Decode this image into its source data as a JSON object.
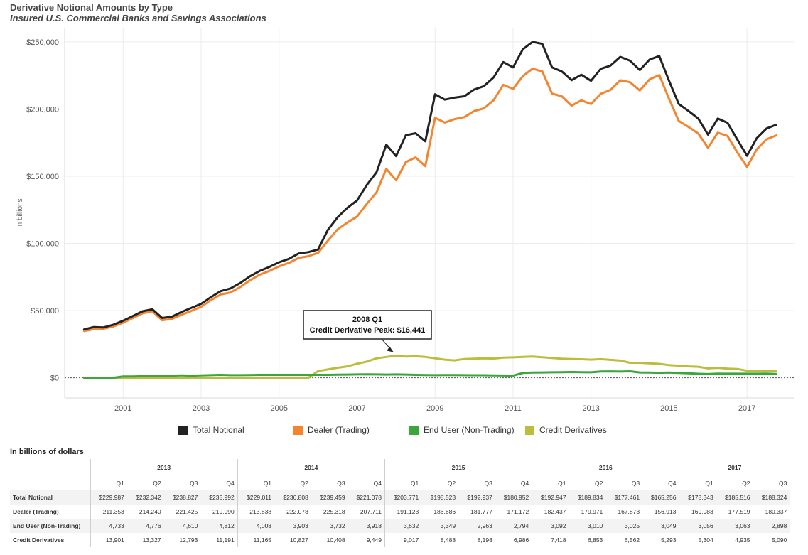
{
  "header": {
    "title": "Derivative Notional Amounts by Type",
    "subtitle": "Insured U.S. Commercial Banks and Savings Associations"
  },
  "chart_data": {
    "type": "line",
    "ylabel": "in billions",
    "xlabel": "",
    "ylim": [
      -15000,
      260000
    ],
    "xlim": [
      1999.5,
      2018.2
    ],
    "x_ticks": [
      2001,
      2003,
      2005,
      2007,
      2009,
      2011,
      2013,
      2015,
      2017
    ],
    "x_tick_labels": [
      "2001",
      "2003",
      "2005",
      "2007",
      "2009",
      "2011",
      "2013",
      "2015",
      "2017"
    ],
    "y_ticks": [
      0,
      50000,
      100000,
      150000,
      200000,
      250000
    ],
    "y_tick_labels": [
      "$0",
      "$50,000",
      "$100,000",
      "$150,000",
      "$200,000",
      "$250,000"
    ],
    "grid": true,
    "legend_position": "bottom",
    "x_start": 2000.0,
    "x_step": 0.25,
    "series": [
      {
        "name": "Total Notional",
        "color": "#222222",
        "values": [
          36000,
          37800,
          37500,
          39500,
          42500,
          46000,
          49500,
          51000,
          44500,
          45500,
          49000,
          52000,
          55000,
          60000,
          64500,
          66500,
          70500,
          75500,
          79500,
          82500,
          86000,
          88500,
          92500,
          93500,
          95500,
          110000,
          119500,
          126500,
          132000,
          143500,
          153000,
          173500,
          165000,
          180500,
          182000,
          176000,
          211000,
          207000,
          208500,
          209500,
          214500,
          217000,
          223500,
          235000,
          231000,
          244500,
          250000,
          248500,
          231000,
          228000,
          221500,
          225500,
          221000,
          229987,
          232342,
          238827,
          235992,
          229011,
          236808,
          239459,
          221078,
          203771,
          198523,
          192937,
          180952,
          192947,
          189834,
          177461,
          165256,
          178343,
          185516,
          188324
        ]
      },
      {
        "name": "Dealer (Trading)",
        "color": "#f5842f",
        "values": [
          34800,
          36200,
          36500,
          38200,
          41000,
          44500,
          48000,
          49500,
          42800,
          43800,
          47000,
          49800,
          52800,
          57800,
          62000,
          63500,
          67500,
          72500,
          76700,
          79500,
          83000,
          85500,
          89200,
          90500,
          93000,
          102000,
          110500,
          115500,
          120000,
          129500,
          138000,
          155500,
          147000,
          160500,
          164000,
          157500,
          193500,
          190000,
          192500,
          194000,
          198500,
          200500,
          206500,
          218000,
          215000,
          224500,
          230000,
          228000,
          211500,
          209500,
          202500,
          206500,
          203800,
          211353,
          214240,
          221425,
          219990,
          213838,
          222078,
          225318,
          207711,
          191123,
          186686,
          181777,
          171172,
          182437,
          179971,
          167873,
          156913,
          169983,
          177519,
          180337
        ]
      },
      {
        "name": "End User (Non-Trading)",
        "color": "#3aa63c",
        "values": [
          0,
          0,
          0,
          0,
          1000,
          1000,
          1200,
          1500,
          1500,
          1600,
          1800,
          1600,
          1800,
          2000,
          2200,
          2000,
          2000,
          2100,
          2200,
          2200,
          2200,
          2200,
          2200,
          2200,
          2200,
          2200,
          2300,
          2400,
          2500,
          2600,
          2500,
          2400,
          2500,
          2400,
          2200,
          2100,
          2000,
          2100,
          2100,
          2000,
          1900,
          1900,
          1800,
          1700,
          1600,
          3600,
          3900,
          4000,
          4100,
          4200,
          4300,
          4200,
          4100,
          4733,
          4776,
          4610,
          4812,
          4008,
          3903,
          3732,
          3918,
          3632,
          3349,
          2963,
          2794,
          3092,
          3010,
          3025,
          3049,
          3056,
          3063,
          2898
        ]
      },
      {
        "name": "Credit Derivatives",
        "color": "#bcbd3c",
        "values": [
          0,
          0,
          0,
          0,
          0,
          0,
          0,
          0,
          0,
          0,
          0,
          0,
          0,
          0,
          0,
          0,
          0,
          0,
          0,
          0,
          0,
          0,
          0,
          0,
          5000,
          6200,
          7500,
          8500,
          10500,
          12000,
          14500,
          15500,
          16441,
          15800,
          16000,
          15500,
          14500,
          13500,
          13000,
          14000,
          14200,
          14500,
          14300,
          15000,
          15200,
          15500,
          15800,
          15300,
          14800,
          14200,
          14000,
          13800,
          13500,
          13901,
          13327,
          12793,
          11191,
          11165,
          10827,
          10408,
          9449,
          9017,
          8488,
          8198,
          6986,
          7418,
          6853,
          6562,
          5293,
          5304,
          4935,
          5090
        ]
      }
    ],
    "annotation": {
      "line1": "2008 Q1",
      "line2": "Credit Derivative Peak: $16,441",
      "x": 2008.0,
      "y": 16441
    }
  },
  "table": {
    "caption": "In billions of dollars",
    "years": [
      "2013",
      "2014",
      "2015",
      "2016",
      "2017"
    ],
    "quarters": [
      [
        "Q1",
        "Q2",
        "Q3",
        "Q4"
      ],
      [
        "Q1",
        "Q2",
        "Q3",
        "Q4"
      ],
      [
        "Q1",
        "Q2",
        "Q3",
        "Q4"
      ],
      [
        "Q1",
        "Q2",
        "Q3",
        "Q4"
      ],
      [
        "Q1",
        "Q2",
        "Q3"
      ]
    ],
    "rows": [
      {
        "label": "Total Notional",
        "values": [
          "$229,987",
          "$232,342",
          "$238,827",
          "$235,992",
          "$229,011",
          "$236,808",
          "$239,459",
          "$221,078",
          "$203,771",
          "$198,523",
          "$192,937",
          "$180,952",
          "$192,947",
          "$189,834",
          "$177,461",
          "$165,256",
          "$178,343",
          "$185,516",
          "$188,324"
        ]
      },
      {
        "label": "Dealer (Trading)",
        "values": [
          "211,353",
          "214,240",
          "221,425",
          "219,990",
          "213,838",
          "222,078",
          "225,318",
          "207,711",
          "191,123",
          "186,686",
          "181,777",
          "171,172",
          "182,437",
          "179,971",
          "167,873",
          "156,913",
          "169,983",
          "177,519",
          "180,337"
        ]
      },
      {
        "label": "End User (Non-Trading)",
        "values": [
          "4,733",
          "4,776",
          "4,610",
          "4,812",
          "4,008",
          "3,903",
          "3,732",
          "3,918",
          "3,632",
          "3,349",
          "2,963",
          "2,794",
          "3,092",
          "3,010",
          "3,025",
          "3,049",
          "3,056",
          "3,063",
          "2,898"
        ]
      },
      {
        "label": "Credit Derivatives",
        "values": [
          "13,901",
          "13,327",
          "12,793",
          "11,191",
          "11,165",
          "10,827",
          "10,408",
          "9,449",
          "9,017",
          "8,488",
          "8,198",
          "6,986",
          "7,418",
          "6,853",
          "6,562",
          "5,293",
          "5,304",
          "4,935",
          "5,090"
        ]
      }
    ]
  }
}
